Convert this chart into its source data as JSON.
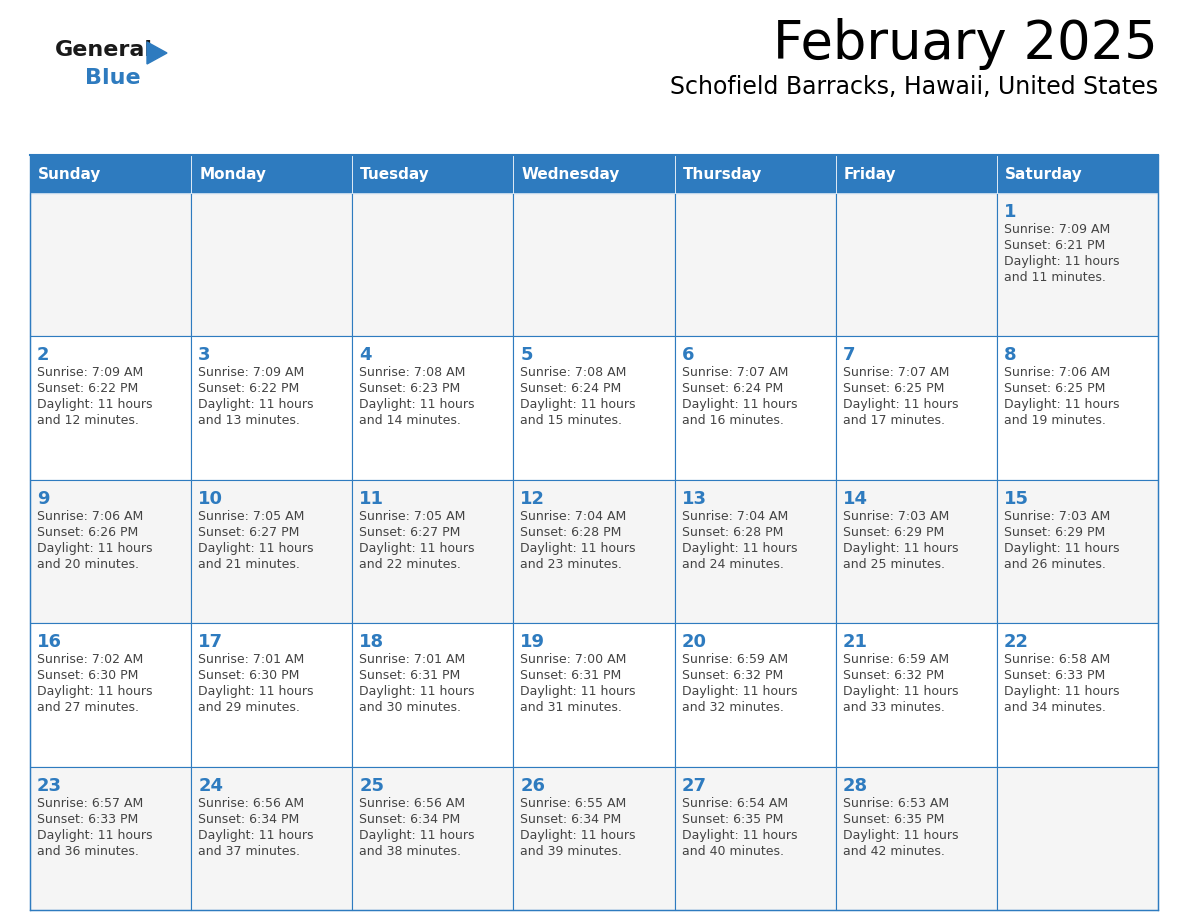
{
  "title": "February 2025",
  "subtitle": "Schofield Barracks, Hawaii, United States",
  "days_of_week": [
    "Sunday",
    "Monday",
    "Tuesday",
    "Wednesday",
    "Thursday",
    "Friday",
    "Saturday"
  ],
  "header_bg": "#2E7BBF",
  "header_text": "#FFFFFF",
  "cell_bg": "#FFFFFF",
  "cell_bg_alt": "#F5F5F5",
  "border_color": "#2E7BBF",
  "text_color": "#444444",
  "day_number_color": "#2E7BBF",
  "logo_general_color": "#1a1a1a",
  "logo_blue_color": "#2E7BBF",
  "calendar_data": [
    [
      {
        "day": null,
        "sunrise": null,
        "sunset": null,
        "daylight_min": null
      },
      {
        "day": null,
        "sunrise": null,
        "sunset": null,
        "daylight_min": null
      },
      {
        "day": null,
        "sunrise": null,
        "sunset": null,
        "daylight_min": null
      },
      {
        "day": null,
        "sunrise": null,
        "sunset": null,
        "daylight_min": null
      },
      {
        "day": null,
        "sunrise": null,
        "sunset": null,
        "daylight_min": null
      },
      {
        "day": null,
        "sunrise": null,
        "sunset": null,
        "daylight_min": null
      },
      {
        "day": 1,
        "sunrise": "7:09 AM",
        "sunset": "6:21 PM",
        "daylight_min": "11 minutes."
      }
    ],
    [
      {
        "day": 2,
        "sunrise": "7:09 AM",
        "sunset": "6:22 PM",
        "daylight_min": "12 minutes."
      },
      {
        "day": 3,
        "sunrise": "7:09 AM",
        "sunset": "6:22 PM",
        "daylight_min": "13 minutes."
      },
      {
        "day": 4,
        "sunrise": "7:08 AM",
        "sunset": "6:23 PM",
        "daylight_min": "14 minutes."
      },
      {
        "day": 5,
        "sunrise": "7:08 AM",
        "sunset": "6:24 PM",
        "daylight_min": "15 minutes."
      },
      {
        "day": 6,
        "sunrise": "7:07 AM",
        "sunset": "6:24 PM",
        "daylight_min": "16 minutes."
      },
      {
        "day": 7,
        "sunrise": "7:07 AM",
        "sunset": "6:25 PM",
        "daylight_min": "17 minutes."
      },
      {
        "day": 8,
        "sunrise": "7:06 AM",
        "sunset": "6:25 PM",
        "daylight_min": "19 minutes."
      }
    ],
    [
      {
        "day": 9,
        "sunrise": "7:06 AM",
        "sunset": "6:26 PM",
        "daylight_min": "20 minutes."
      },
      {
        "day": 10,
        "sunrise": "7:05 AM",
        "sunset": "6:27 PM",
        "daylight_min": "21 minutes."
      },
      {
        "day": 11,
        "sunrise": "7:05 AM",
        "sunset": "6:27 PM",
        "daylight_min": "22 minutes."
      },
      {
        "day": 12,
        "sunrise": "7:04 AM",
        "sunset": "6:28 PM",
        "daylight_min": "23 minutes."
      },
      {
        "day": 13,
        "sunrise": "7:04 AM",
        "sunset": "6:28 PM",
        "daylight_min": "24 minutes."
      },
      {
        "day": 14,
        "sunrise": "7:03 AM",
        "sunset": "6:29 PM",
        "daylight_min": "25 minutes."
      },
      {
        "day": 15,
        "sunrise": "7:03 AM",
        "sunset": "6:29 PM",
        "daylight_min": "26 minutes."
      }
    ],
    [
      {
        "day": 16,
        "sunrise": "7:02 AM",
        "sunset": "6:30 PM",
        "daylight_min": "27 minutes."
      },
      {
        "day": 17,
        "sunrise": "7:01 AM",
        "sunset": "6:30 PM",
        "daylight_min": "29 minutes."
      },
      {
        "day": 18,
        "sunrise": "7:01 AM",
        "sunset": "6:31 PM",
        "daylight_min": "30 minutes."
      },
      {
        "day": 19,
        "sunrise": "7:00 AM",
        "sunset": "6:31 PM",
        "daylight_min": "31 minutes."
      },
      {
        "day": 20,
        "sunrise": "6:59 AM",
        "sunset": "6:32 PM",
        "daylight_min": "32 minutes."
      },
      {
        "day": 21,
        "sunrise": "6:59 AM",
        "sunset": "6:32 PM",
        "daylight_min": "33 minutes."
      },
      {
        "day": 22,
        "sunrise": "6:58 AM",
        "sunset": "6:33 PM",
        "daylight_min": "34 minutes."
      }
    ],
    [
      {
        "day": 23,
        "sunrise": "6:57 AM",
        "sunset": "6:33 PM",
        "daylight_min": "36 minutes."
      },
      {
        "day": 24,
        "sunrise": "6:56 AM",
        "sunset": "6:34 PM",
        "daylight_min": "37 minutes."
      },
      {
        "day": 25,
        "sunrise": "6:56 AM",
        "sunset": "6:34 PM",
        "daylight_min": "38 minutes."
      },
      {
        "day": 26,
        "sunrise": "6:55 AM",
        "sunset": "6:34 PM",
        "daylight_min": "39 minutes."
      },
      {
        "day": 27,
        "sunrise": "6:54 AM",
        "sunset": "6:35 PM",
        "daylight_min": "40 minutes."
      },
      {
        "day": 28,
        "sunrise": "6:53 AM",
        "sunset": "6:35 PM",
        "daylight_min": "42 minutes."
      },
      {
        "day": null,
        "sunrise": null,
        "sunset": null,
        "daylight_min": null
      }
    ]
  ]
}
